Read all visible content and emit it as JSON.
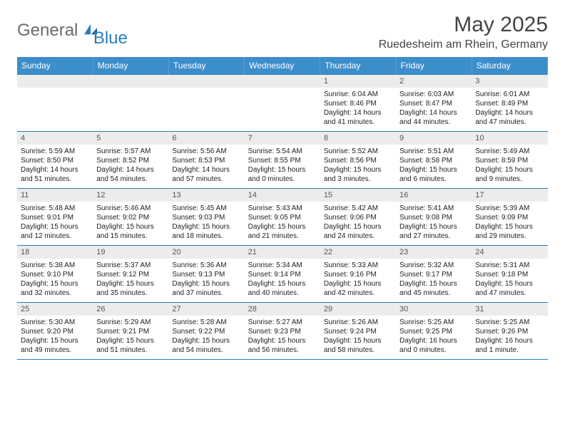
{
  "brand": {
    "general": "General",
    "blue": "Blue",
    "accent": "#2b7db8"
  },
  "title": "May 2025",
  "location": "Ruedesheim am Rhein, Germany",
  "colors": {
    "header_bg": "#3c8ecb",
    "header_text": "#ffffff",
    "border": "#2b7db8",
    "daynum_bg": "#ececec",
    "daynum_text": "#555555",
    "body_text": "#222222"
  },
  "weekdays": [
    "Sunday",
    "Monday",
    "Tuesday",
    "Wednesday",
    "Thursday",
    "Friday",
    "Saturday"
  ],
  "labels": {
    "sunrise": "Sunrise:",
    "sunset": "Sunset:",
    "daylight": "Daylight:"
  },
  "weeks": [
    [
      null,
      null,
      null,
      null,
      {
        "n": 1,
        "sr": "6:04 AM",
        "ss": "8:46 PM",
        "dl": "14 hours and 41 minutes."
      },
      {
        "n": 2,
        "sr": "6:03 AM",
        "ss": "8:47 PM",
        "dl": "14 hours and 44 minutes."
      },
      {
        "n": 3,
        "sr": "6:01 AM",
        "ss": "8:49 PM",
        "dl": "14 hours and 47 minutes."
      }
    ],
    [
      {
        "n": 4,
        "sr": "5:59 AM",
        "ss": "8:50 PM",
        "dl": "14 hours and 51 minutes."
      },
      {
        "n": 5,
        "sr": "5:57 AM",
        "ss": "8:52 PM",
        "dl": "14 hours and 54 minutes."
      },
      {
        "n": 6,
        "sr": "5:56 AM",
        "ss": "8:53 PM",
        "dl": "14 hours and 57 minutes."
      },
      {
        "n": 7,
        "sr": "5:54 AM",
        "ss": "8:55 PM",
        "dl": "15 hours and 0 minutes."
      },
      {
        "n": 8,
        "sr": "5:52 AM",
        "ss": "8:56 PM",
        "dl": "15 hours and 3 minutes."
      },
      {
        "n": 9,
        "sr": "5:51 AM",
        "ss": "8:58 PM",
        "dl": "15 hours and 6 minutes."
      },
      {
        "n": 10,
        "sr": "5:49 AM",
        "ss": "8:59 PM",
        "dl": "15 hours and 9 minutes."
      }
    ],
    [
      {
        "n": 11,
        "sr": "5:48 AM",
        "ss": "9:01 PM",
        "dl": "15 hours and 12 minutes."
      },
      {
        "n": 12,
        "sr": "5:46 AM",
        "ss": "9:02 PM",
        "dl": "15 hours and 15 minutes."
      },
      {
        "n": 13,
        "sr": "5:45 AM",
        "ss": "9:03 PM",
        "dl": "15 hours and 18 minutes."
      },
      {
        "n": 14,
        "sr": "5:43 AM",
        "ss": "9:05 PM",
        "dl": "15 hours and 21 minutes."
      },
      {
        "n": 15,
        "sr": "5:42 AM",
        "ss": "9:06 PM",
        "dl": "15 hours and 24 minutes."
      },
      {
        "n": 16,
        "sr": "5:41 AM",
        "ss": "9:08 PM",
        "dl": "15 hours and 27 minutes."
      },
      {
        "n": 17,
        "sr": "5:39 AM",
        "ss": "9:09 PM",
        "dl": "15 hours and 29 minutes."
      }
    ],
    [
      {
        "n": 18,
        "sr": "5:38 AM",
        "ss": "9:10 PM",
        "dl": "15 hours and 32 minutes."
      },
      {
        "n": 19,
        "sr": "5:37 AM",
        "ss": "9:12 PM",
        "dl": "15 hours and 35 minutes."
      },
      {
        "n": 20,
        "sr": "5:36 AM",
        "ss": "9:13 PM",
        "dl": "15 hours and 37 minutes."
      },
      {
        "n": 21,
        "sr": "5:34 AM",
        "ss": "9:14 PM",
        "dl": "15 hours and 40 minutes."
      },
      {
        "n": 22,
        "sr": "5:33 AM",
        "ss": "9:16 PM",
        "dl": "15 hours and 42 minutes."
      },
      {
        "n": 23,
        "sr": "5:32 AM",
        "ss": "9:17 PM",
        "dl": "15 hours and 45 minutes."
      },
      {
        "n": 24,
        "sr": "5:31 AM",
        "ss": "9:18 PM",
        "dl": "15 hours and 47 minutes."
      }
    ],
    [
      {
        "n": 25,
        "sr": "5:30 AM",
        "ss": "9:20 PM",
        "dl": "15 hours and 49 minutes."
      },
      {
        "n": 26,
        "sr": "5:29 AM",
        "ss": "9:21 PM",
        "dl": "15 hours and 51 minutes."
      },
      {
        "n": 27,
        "sr": "5:28 AM",
        "ss": "9:22 PM",
        "dl": "15 hours and 54 minutes."
      },
      {
        "n": 28,
        "sr": "5:27 AM",
        "ss": "9:23 PM",
        "dl": "15 hours and 56 minutes."
      },
      {
        "n": 29,
        "sr": "5:26 AM",
        "ss": "9:24 PM",
        "dl": "15 hours and 58 minutes."
      },
      {
        "n": 30,
        "sr": "5:25 AM",
        "ss": "9:25 PM",
        "dl": "16 hours and 0 minutes."
      },
      {
        "n": 31,
        "sr": "5:25 AM",
        "ss": "9:26 PM",
        "dl": "16 hours and 1 minute."
      }
    ]
  ]
}
